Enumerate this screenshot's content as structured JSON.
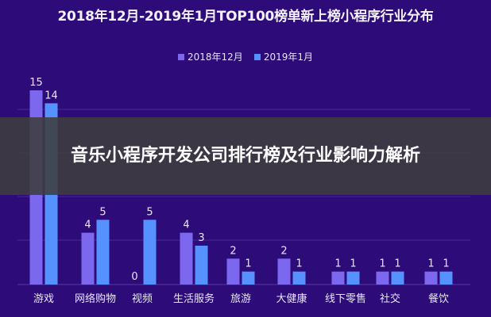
{
  "chart_data": {
    "type": "bar",
    "title": "2018年12月-2019年1月TOP100榜单新上榜小程序行业分布",
    "categories": [
      "游戏",
      "网络购物",
      "视频",
      "生活服务",
      "旅游",
      "大健康",
      "线下零售",
      "社交",
      "餐饮"
    ],
    "series": [
      {
        "name": "2018年12月",
        "color": "#7b68ee",
        "values": [
          15,
          4,
          0,
          4,
          2,
          2,
          1,
          1,
          1
        ]
      },
      {
        "name": "2019年1月",
        "color": "#5591ff",
        "values": [
          14,
          5,
          5,
          3,
          1,
          1,
          1,
          1,
          1
        ]
      }
    ],
    "ylim": [
      0,
      15
    ],
    "grid": true,
    "legend_position": "top-center",
    "background_color": "#2d0b78"
  },
  "overlay": {
    "banner_text": "音乐小程序开发公司排行榜及行业影响力解析"
  }
}
